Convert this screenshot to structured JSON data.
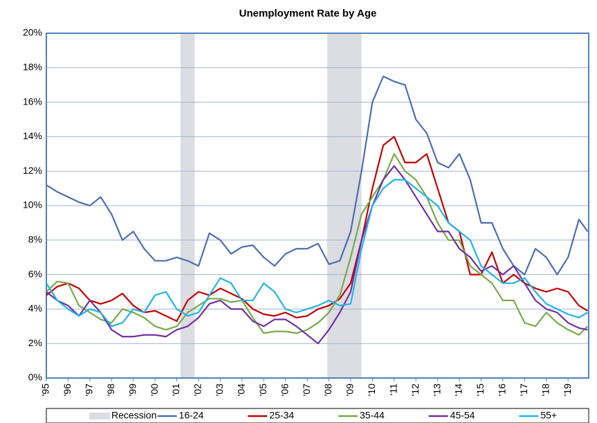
{
  "chart_data": {
    "type": "line",
    "title": "Unemployment Rate by Age",
    "x": [
      1995,
      1995.5,
      1996,
      1996.5,
      1997,
      1997.5,
      1998,
      1998.5,
      1999,
      1999.5,
      2000,
      2000.5,
      2001,
      2001.5,
      2002,
      2002.5,
      2003,
      2003.5,
      2004,
      2004.5,
      2005,
      2005.5,
      2006,
      2006.5,
      2007,
      2007.5,
      2008,
      2008.5,
      2009,
      2009.5,
      2010,
      2010.5,
      2011,
      2011.5,
      2012,
      2012.5,
      2013,
      2013.5,
      2014,
      2014.5,
      2015,
      2015.5,
      2016,
      2016.5,
      2017,
      2017.5,
      2018,
      2018.5,
      2019,
      2019.5,
      2019.9
    ],
    "series": [
      {
        "name": "16-24",
        "color": "#4a6fae",
        "values": [
          11.2,
          10.8,
          10.5,
          10.2,
          10.0,
          10.5,
          9.5,
          8.0,
          8.5,
          7.5,
          6.8,
          6.8,
          7.0,
          6.8,
          6.5,
          8.4,
          8.0,
          7.2,
          7.6,
          7.7,
          7.0,
          6.5,
          7.2,
          7.5,
          7.5,
          7.8,
          6.6,
          6.8,
          8.5,
          12.0,
          16.0,
          17.5,
          17.2,
          17.0,
          15.0,
          14.2,
          12.5,
          12.2,
          13.0,
          11.5,
          9.0,
          9.0,
          7.5,
          6.5,
          6.0,
          7.5,
          7.0,
          6.0,
          7.0,
          9.2,
          8.5
        ]
      },
      {
        "name": "25-34",
        "color": "#c00000",
        "values": [
          4.8,
          5.3,
          5.5,
          5.2,
          4.5,
          4.3,
          4.5,
          4.9,
          4.2,
          3.8,
          3.9,
          3.6,
          3.3,
          4.5,
          5.0,
          4.8,
          5.2,
          4.9,
          4.6,
          4.0,
          3.7,
          3.6,
          3.8,
          3.5,
          3.6,
          4.0,
          4.2,
          4.6,
          5.5,
          8.0,
          11.0,
          13.5,
          14.0,
          12.5,
          12.5,
          13.0,
          11.0,
          9.0,
          8.5,
          6.0,
          6.0,
          7.3,
          5.5,
          6.0,
          5.5,
          5.2,
          5.0,
          5.2,
          5.0,
          4.2,
          3.9
        ]
      },
      {
        "name": "35-44",
        "color": "#77a94a",
        "values": [
          5.0,
          5.6,
          5.5,
          4.2,
          3.8,
          3.4,
          3.2,
          4.0,
          3.8,
          3.5,
          3.0,
          2.8,
          3.0,
          3.8,
          4.2,
          4.6,
          4.6,
          4.4,
          4.5,
          3.5,
          2.6,
          2.7,
          2.7,
          2.6,
          2.8,
          3.2,
          3.8,
          4.8,
          7.0,
          9.5,
          10.5,
          11.5,
          13.0,
          12.0,
          11.5,
          10.5,
          9.0,
          8.0,
          8.0,
          6.5,
          6.0,
          5.5,
          4.5,
          4.5,
          3.2,
          3.0,
          3.8,
          3.2,
          2.8,
          2.5,
          3.0
        ]
      },
      {
        "name": "45-54",
        "color": "#7030a0",
        "values": [
          5.0,
          4.5,
          4.2,
          3.6,
          4.5,
          3.8,
          2.8,
          2.4,
          2.4,
          2.5,
          2.5,
          2.4,
          2.8,
          3.0,
          3.5,
          4.3,
          4.5,
          4.0,
          4.0,
          3.3,
          3.0,
          3.4,
          3.4,
          3.0,
          2.5,
          2.0,
          2.8,
          3.8,
          5.0,
          8.0,
          10.0,
          11.5,
          12.3,
          11.5,
          10.5,
          9.5,
          8.5,
          8.5,
          7.5,
          7.0,
          6.2,
          6.5,
          6.0,
          6.5,
          5.5,
          4.5,
          4.0,
          3.8,
          3.2,
          2.9,
          2.8
        ]
      },
      {
        "name": "55+",
        "color": "#1fb4e8",
        "values": [
          5.5,
          4.5,
          4.0,
          3.6,
          4.0,
          3.8,
          3.0,
          3.2,
          4.0,
          3.8,
          4.8,
          5.0,
          4.0,
          3.6,
          3.8,
          4.8,
          5.8,
          5.5,
          4.5,
          4.5,
          5.5,
          5.0,
          4.0,
          3.8,
          4.0,
          4.2,
          4.5,
          4.2,
          4.3,
          7.5,
          10.0,
          11.0,
          11.5,
          11.5,
          11.0,
          10.5,
          10.0,
          9.0,
          8.5,
          8.0,
          6.5,
          6.0,
          5.5,
          5.5,
          5.8,
          5.0,
          4.3,
          4.0,
          3.7,
          3.5,
          3.8
        ]
      }
    ],
    "recession": {
      "name": "Recession",
      "color": "#dcdde3",
      "periods": [
        [
          2001.17,
          2001.83
        ],
        [
          2007.92,
          2009.5
        ]
      ]
    },
    "xlim": [
      1995,
      2019.95
    ],
    "xticks": [
      {
        "value": 1995,
        "label": "'95"
      },
      {
        "value": 1996,
        "label": "'96"
      },
      {
        "value": 1997,
        "label": "'97"
      },
      {
        "value": 1998,
        "label": "'98"
      },
      {
        "value": 1999,
        "label": "'99"
      },
      {
        "value": 2000,
        "label": "'00"
      },
      {
        "value": 2001,
        "label": "'01"
      },
      {
        "value": 2002,
        "label": "'02"
      },
      {
        "value": 2003,
        "label": "'03"
      },
      {
        "value": 2004,
        "label": "'04"
      },
      {
        "value": 2005,
        "label": "'05"
      },
      {
        "value": 2006,
        "label": "'06"
      },
      {
        "value": 2007,
        "label": "'07"
      },
      {
        "value": 2008,
        "label": "'08"
      },
      {
        "value": 2009,
        "label": "'09"
      },
      {
        "value": 2010,
        "label": "'10"
      },
      {
        "value": 2011,
        "label": "'11"
      },
      {
        "value": 2012,
        "label": "'12"
      },
      {
        "value": 2013,
        "label": "'13"
      },
      {
        "value": 2014,
        "label": "'14"
      },
      {
        "value": 2015,
        "label": "'15"
      },
      {
        "value": 2016,
        "label": "'16"
      },
      {
        "value": 2017,
        "label": "'17"
      },
      {
        "value": 2018,
        "label": "'18"
      },
      {
        "value": 2019,
        "label": "'19"
      }
    ],
    "ylim": [
      0,
      20
    ],
    "yticks": [
      {
        "value": 0,
        "label": "0%"
      },
      {
        "value": 2,
        "label": "2%"
      },
      {
        "value": 4,
        "label": "4%"
      },
      {
        "value": 6,
        "label": "6%"
      },
      {
        "value": 8,
        "label": "8%"
      },
      {
        "value": 10,
        "label": "10%"
      },
      {
        "value": 12,
        "label": "12%"
      },
      {
        "value": 14,
        "label": "14%"
      },
      {
        "value": 16,
        "label": "16%"
      },
      {
        "value": 18,
        "label": "18%"
      },
      {
        "value": 20,
        "label": "20%"
      }
    ],
    "grid": true,
    "legend": "bottom"
  }
}
